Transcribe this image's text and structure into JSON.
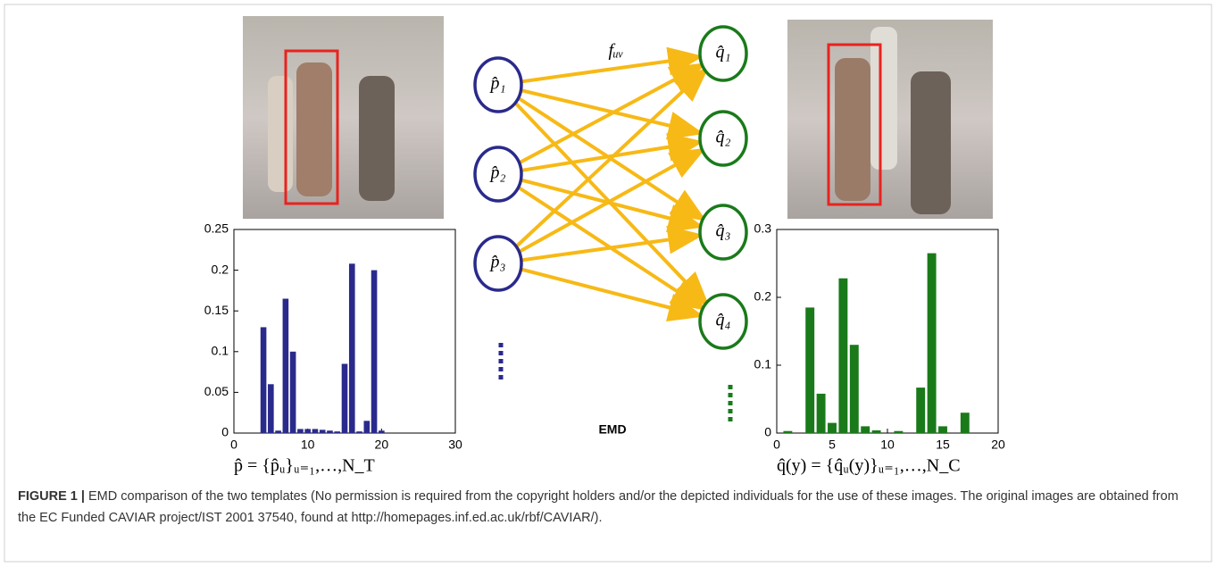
{
  "chart_data": [
    {
      "type": "bar",
      "x": [
        4,
        5,
        6,
        7,
        8,
        9,
        10,
        11,
        12,
        13,
        14,
        15,
        16,
        17,
        18,
        19,
        20
      ],
      "values": [
        0.13,
        0.06,
        0.003,
        0.165,
        0.1,
        0.005,
        0.005,
        0.005,
        0.004,
        0.003,
        0.002,
        0.085,
        0.208,
        0.002,
        0.015,
        0.2,
        0.003
      ],
      "color": "#2a2a8c",
      "xlim": [
        0,
        30
      ],
      "ylim": [
        0,
        0.25
      ],
      "xticks": [
        0,
        10,
        20,
        30
      ],
      "yticks": [
        0,
        0.05,
        0.1,
        0.15,
        0.2,
        0.25
      ],
      "xlabel": "p̂ = {p̂ᵤ}ᵤ₌₁,…,N_T"
    },
    {
      "type": "bar",
      "x": [
        1,
        3,
        4,
        5,
        6,
        7,
        8,
        9,
        11,
        13,
        14,
        15,
        17
      ],
      "values": [
        0.003,
        0.185,
        0.058,
        0.015,
        0.228,
        0.13,
        0.01,
        0.004,
        0.003,
        0.067,
        0.265,
        0.01,
        0.03
      ],
      "color": "#1a7a1a",
      "xlim": [
        0,
        20
      ],
      "ylim": [
        0,
        0.3
      ],
      "xticks": [
        0,
        5,
        10,
        15,
        20
      ],
      "yticks": [
        0,
        0.1,
        0.2,
        0.3
      ],
      "xlabel": "q̂(y) = {q̂ᵤ(y)}ᵤ₌₁,…,N_C"
    }
  ],
  "nodes": {
    "left": [
      "p̂₁",
      "p̂₂",
      "p̂₃"
    ],
    "right": [
      "q̂₁",
      "q̂₂",
      "q̂₃",
      "q̂₄"
    ]
  },
  "edge_label": "fᵤᵥ",
  "emd_label": "EMD",
  "caption": {
    "label": "FIGURE 1 |",
    "text": "EMD comparison of the two templates (No permission is required from the copyright holders and/or the depicted individuals for the use of these images. The original images are obtained from the EC Funded CAVIAR project/IST 2001 37540, found at http://homepages.inf.ed.ac.uk/rbf/CAVIAR/)."
  }
}
